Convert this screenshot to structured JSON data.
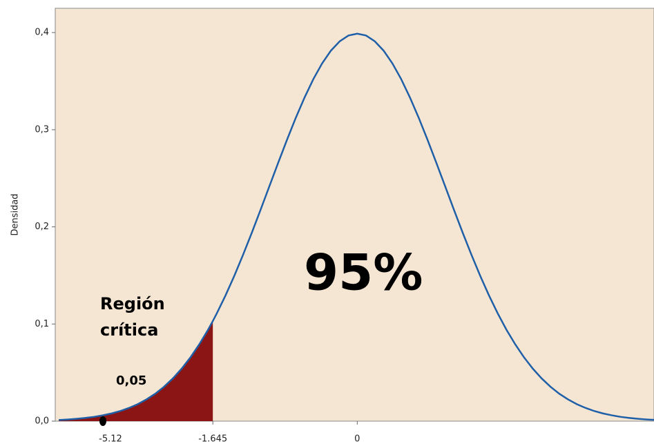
{
  "chart_data": {
    "type": "line",
    "y_label": "Densidad",
    "x": [
      -3.4,
      -3.3,
      -3.2,
      -3.1,
      -3.0,
      -2.9,
      -2.8,
      -2.7,
      -2.6,
      -2.5,
      -2.4,
      -2.3,
      -2.2,
      -2.1,
      -2.0,
      -1.9,
      -1.8,
      -1.7,
      -1.645,
      -1.6,
      -1.5,
      -1.4,
      -1.3,
      -1.2,
      -1.1,
      -1.0,
      -0.9,
      -0.8,
      -0.7,
      -0.6,
      -0.5,
      -0.4,
      -0.3,
      -0.2,
      -0.1,
      0,
      0.1,
      0.2,
      0.3,
      0.4,
      0.5,
      0.6,
      0.7,
      0.8,
      0.9,
      1.0,
      1.1,
      1.2,
      1.3,
      1.4,
      1.5,
      1.6,
      1.7,
      1.8,
      1.9,
      2.0,
      2.1,
      2.2,
      2.3,
      2.4,
      2.5,
      2.6,
      2.7,
      2.8,
      2.9,
      3.0,
      3.1,
      3.2,
      3.3,
      3.4
    ],
    "series": [
      {
        "color": "#1f5fa8",
        "shade_color": "#8b1414",
        "values": [
          0.0012,
          0.0017,
          0.0024,
          0.0033,
          0.0044,
          0.006,
          0.0079,
          0.0104,
          0.0136,
          0.0175,
          0.0224,
          0.0283,
          0.0355,
          0.044,
          0.054,
          0.0656,
          0.079,
          0.094,
          0.1031,
          0.1109,
          0.1295,
          0.1497,
          0.1714,
          0.1942,
          0.2179,
          0.242,
          0.2661,
          0.2897,
          0.3123,
          0.3332,
          0.3521,
          0.3683,
          0.3814,
          0.391,
          0.397,
          0.3989,
          0.397,
          0.391,
          0.3814,
          0.3683,
          0.3521,
          0.3332,
          0.3123,
          0.2897,
          0.2661,
          0.242,
          0.2179,
          0.1942,
          0.1714,
          0.1497,
          0.1295,
          0.1109,
          0.094,
          0.079,
          0.0656,
          0.054,
          0.044,
          0.0355,
          0.0283,
          0.0224,
          0.0175,
          0.0136,
          0.0104,
          0.0079,
          0.006,
          0.0044,
          0.0033,
          0.0024,
          0.0017,
          0.0012
        ]
      }
    ],
    "xlim": [
      -3.44,
      3.38
    ],
    "xticks": [
      -1.645,
      0
    ],
    "ylim": [
      0,
      0.425
    ],
    "yticks": [
      {
        "value": 0,
        "label": "0,0"
      },
      {
        "value": 0.1,
        "label": "0,1"
      },
      {
        "value": 0.2,
        "label": "0,2"
      },
      {
        "value": 0.3,
        "label": "0,3"
      },
      {
        "value": 0.4,
        "label": "0,4"
      }
    ],
    "plot_background": "#f5e6d3",
    "annotations": [
      "Región",
      "crítica",
      "0,05",
      "95%",
      "-5.12"
    ]
  }
}
